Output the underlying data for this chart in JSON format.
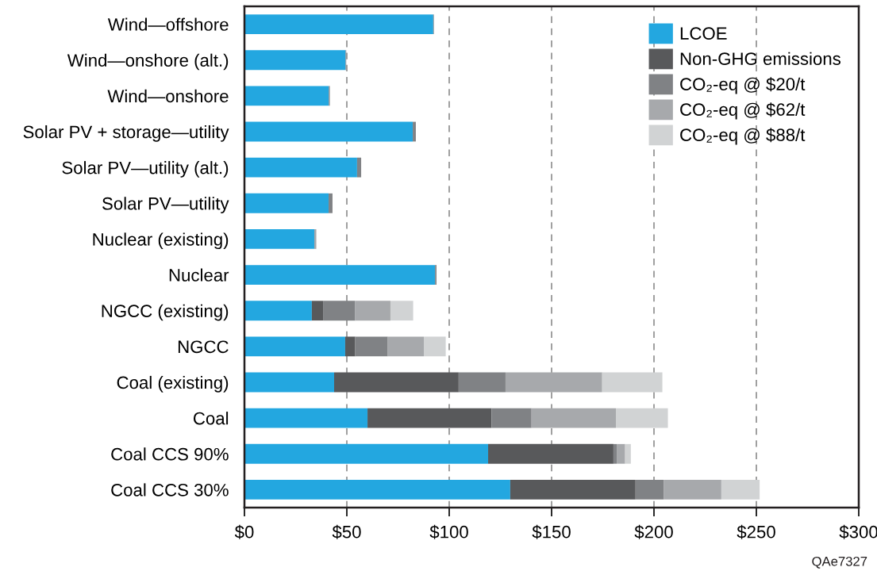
{
  "chart_data": {
    "type": "bar",
    "orientation": "horizontal",
    "stacked": true,
    "categories": [
      "Wind—offshore",
      "Wind—onshore (alt.)",
      "Wind—onshore",
      "Solar PV + storage—utility",
      "Solar PV—utility (alt.)",
      "Solar PV—utility",
      "Nuclear (existing)",
      "Nuclear",
      "NGCC (existing)",
      "NGCC",
      "Coal (existing)",
      "Coal",
      "Coal CCS 90%",
      "Coal CCS 30%"
    ],
    "series": [
      {
        "name": "LCOE",
        "color": "#23a7e0",
        "values": [
          92.2,
          49.4,
          41.2,
          82.2,
          55.0,
          41.1,
          34.1,
          93.1,
          32.9,
          49.2,
          43.8,
          60.1,
          119.0,
          129.8
        ]
      },
      {
        "name": "Non-GHG emissions",
        "color": "#58595b",
        "values": [
          0,
          0,
          0,
          0,
          0,
          0,
          0,
          0,
          5.5,
          4.9,
          60.8,
          60.6,
          61.2,
          61.2
        ]
      },
      {
        "name": "CO₂-eq @ $20/t",
        "color": "#808285",
        "values": [
          0.3,
          0.3,
          0.5,
          1.5,
          2.0,
          1.9,
          0,
          0.7,
          15.7,
          15.9,
          22.9,
          19.5,
          1.6,
          13.7
        ]
      },
      {
        "name": "CO₂-eq @ $62/t",
        "color": "#a7a9ac",
        "values": [
          0,
          0,
          0,
          0,
          0,
          0,
          1.0,
          0,
          17.2,
          17.6,
          47.2,
          41.2,
          4.1,
          28.2
        ]
      },
      {
        "name": "CO₂-eq @ $88/t",
        "color": "#d1d3d4",
        "values": [
          0,
          0,
          0,
          0,
          0,
          0,
          0,
          0,
          11.1,
          10.7,
          29.4,
          25.4,
          2.8,
          18.7
        ]
      }
    ],
    "xlim": [
      0,
      300
    ],
    "xticks": [
      {
        "value": 0,
        "label": "$0"
      },
      {
        "value": 50,
        "label": "$50"
      },
      {
        "value": 100,
        "label": "$100"
      },
      {
        "value": 150,
        "label": "$150"
      },
      {
        "value": 200,
        "label": "$200"
      },
      {
        "value": 250,
        "label": "$250"
      },
      {
        "value": 300,
        "label": "$300"
      }
    ],
    "grid": "x",
    "legend": "top right",
    "annotations": [
      "QAe7327"
    ]
  }
}
